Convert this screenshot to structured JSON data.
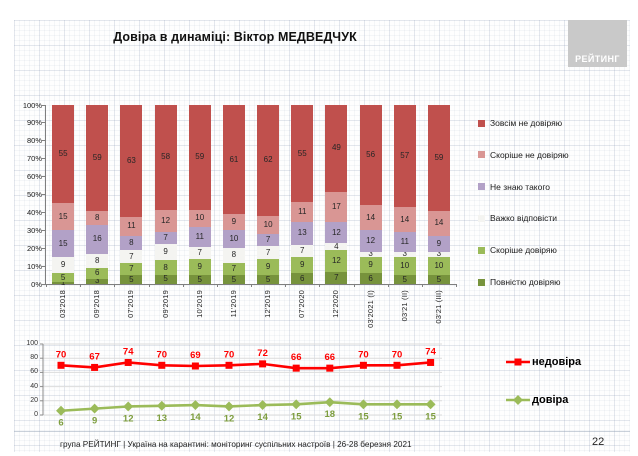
{
  "slide": {
    "title": "Довіра в динаміці: Віктор МЕДВЕДЧУК",
    "logo_text": "РЕЙТИНГ",
    "footer_text": "група РЕЙТИНГ | Україна на карантині: моніторинг суспільних настроїв | 26-28 березня 2021",
    "page_number": "22"
  },
  "chart_data": [
    {
      "type": "bar",
      "subtype": "stacked-100-percent",
      "title": "Довіра в динаміці: Віктор МЕДВЕДЧУК",
      "categories": [
        "03'2018",
        "09'2018",
        "07'2019",
        "09'2019",
        "10'2019",
        "11'2019",
        "12'2019",
        "07'2020",
        "12'2020",
        "03'2021 (І)",
        "03'21 (ІІ)",
        "03'21 (ІІІ)"
      ],
      "y_ticks": [
        "100%",
        "90%",
        "80%",
        "70%",
        "60%",
        "50%",
        "40%",
        "30%",
        "20%",
        "10%",
        "0%"
      ],
      "ylim": [
        0,
        100
      ],
      "grid": false,
      "legend_position": "right",
      "series_bottom_to_top": [
        {
          "name": "Повністю довіряю",
          "color": "#77933C",
          "values": [
            1,
            3,
            5,
            5,
            5,
            5,
            5,
            6,
            7,
            6,
            5,
            5
          ]
        },
        {
          "name": "Скоріше довіряю",
          "color": "#9BBB59",
          "values": [
            5,
            6,
            7,
            8,
            9,
            7,
            9,
            9,
            12,
            9,
            10,
            10
          ]
        },
        {
          "name": "Важко відповісти",
          "color": "#F4F4F1",
          "values": [
            9,
            8,
            7,
            9,
            7,
            8,
            7,
            7,
            4,
            3,
            3,
            3
          ]
        },
        {
          "name": "Не знаю такого",
          "color": "#B2A1C7",
          "values": [
            15,
            16,
            8,
            7,
            11,
            10,
            7,
            13,
            12,
            12,
            11,
            9
          ]
        },
        {
          "name": "Скоріше не довіряю",
          "color": "#D99694",
          "values": [
            15,
            8,
            11,
            12,
            10,
            9,
            10,
            11,
            17,
            14,
            14,
            14
          ]
        },
        {
          "name": "Зовсім не довіряю",
          "color": "#C0504D",
          "values": [
            55,
            59,
            63,
            58,
            59,
            61,
            62,
            55,
            49,
            56,
            57,
            59
          ]
        }
      ],
      "legend_top_to_bottom": [
        "Зовсім не довіряю",
        "Скоріше не довіряю",
        "Не знаю такого",
        "Важко відповісти",
        "Скоріше довіряю",
        "Повністю довіряю"
      ]
    },
    {
      "type": "line",
      "categories": [
        "03'2018",
        "09'2018",
        "07'2019",
        "09'2019",
        "10'2019",
        "11'2019",
        "12'2019",
        "07'2020",
        "12'2020",
        "03'2021 (І)",
        "03'21 (ІІ)",
        "03'21 (ІІІ)"
      ],
      "y_ticks": [
        100,
        80,
        60,
        40,
        20,
        0
      ],
      "ylim": [
        0,
        100
      ],
      "grid": true,
      "legend_position": "right",
      "series": [
        {
          "name": "недовіра",
          "color": "#FF0000",
          "label_color": "#FF0000",
          "marker": "square",
          "values": [
            70,
            67,
            74,
            70,
            69,
            70,
            72,
            66,
            66,
            70,
            70,
            74
          ]
        },
        {
          "name": "довіра",
          "color": "#9BBB59",
          "label_color": "#7E9E3F",
          "marker": "diamond",
          "values": [
            6,
            9,
            12,
            13,
            14,
            12,
            14,
            15,
            18,
            15,
            15,
            15
          ]
        }
      ]
    }
  ]
}
